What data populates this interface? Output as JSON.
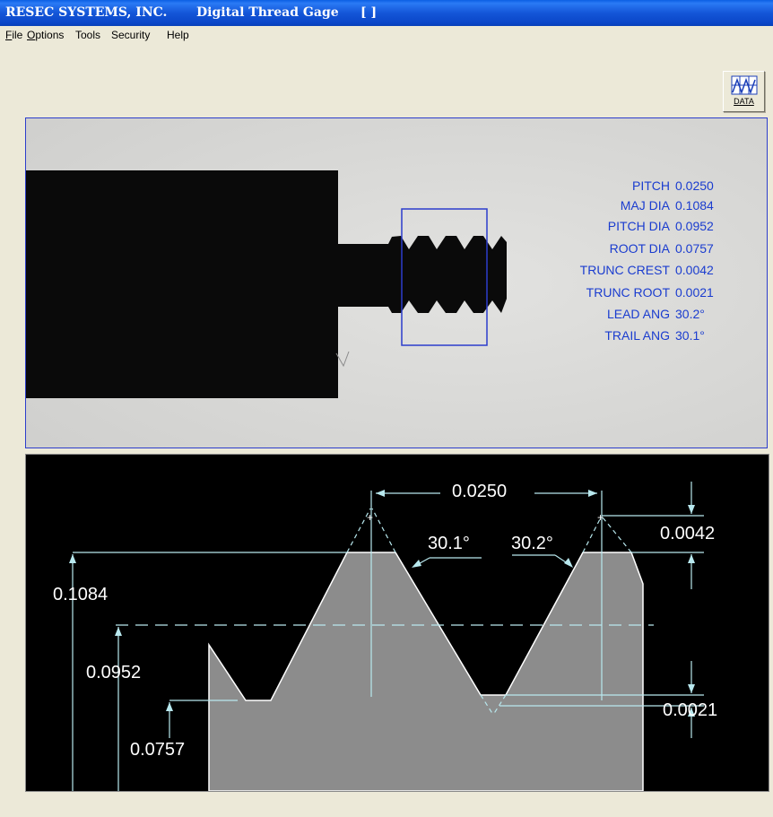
{
  "window": {
    "company": "RESEC SYSTEMS, INC.",
    "app_name": "Digital Thread Gage",
    "brackets": "[ ]"
  },
  "menu": {
    "file": {
      "first": "F",
      "rest": "ile"
    },
    "options": {
      "first": "O",
      "rest": "ptions"
    },
    "tools": "Tools",
    "security": "Security",
    "help": "Help"
  },
  "toolbar": {
    "data_label": "DATA",
    "data_icon": "chart-icon"
  },
  "measurements": [
    {
      "label": "PITCH",
      "value": "0.0250"
    },
    {
      "label": "MAJ DIA",
      "value": "0.1084"
    },
    {
      "label": "PITCH DIA",
      "value": "0.0952"
    },
    {
      "label": "ROOT DIA",
      "value": "0.0757"
    },
    {
      "label": "TRUNC CREST",
      "value": "0.0042"
    },
    {
      "label": "TRUNC ROOT",
      "value": "0.0021"
    },
    {
      "label": "LEAD ANG",
      "value": "30.2°"
    },
    {
      "label": "TRAIL ANG",
      "value": "30.1°"
    }
  ],
  "profile_dims": {
    "pitch": "0.0250",
    "major_dia": "0.1084",
    "pitch_dia": "0.0952",
    "root_dia": "0.0757",
    "trail_angle": "30.1°",
    "lead_angle": "30.2°",
    "trunc_crest": "0.0042",
    "trunc_root": "0.0021"
  },
  "colors": {
    "title_bar": "#0a46c8",
    "measurement_text": "#1a3ccf",
    "profile_fill": "#8c8c8c",
    "dimension_lines": "#b8e8ee"
  }
}
